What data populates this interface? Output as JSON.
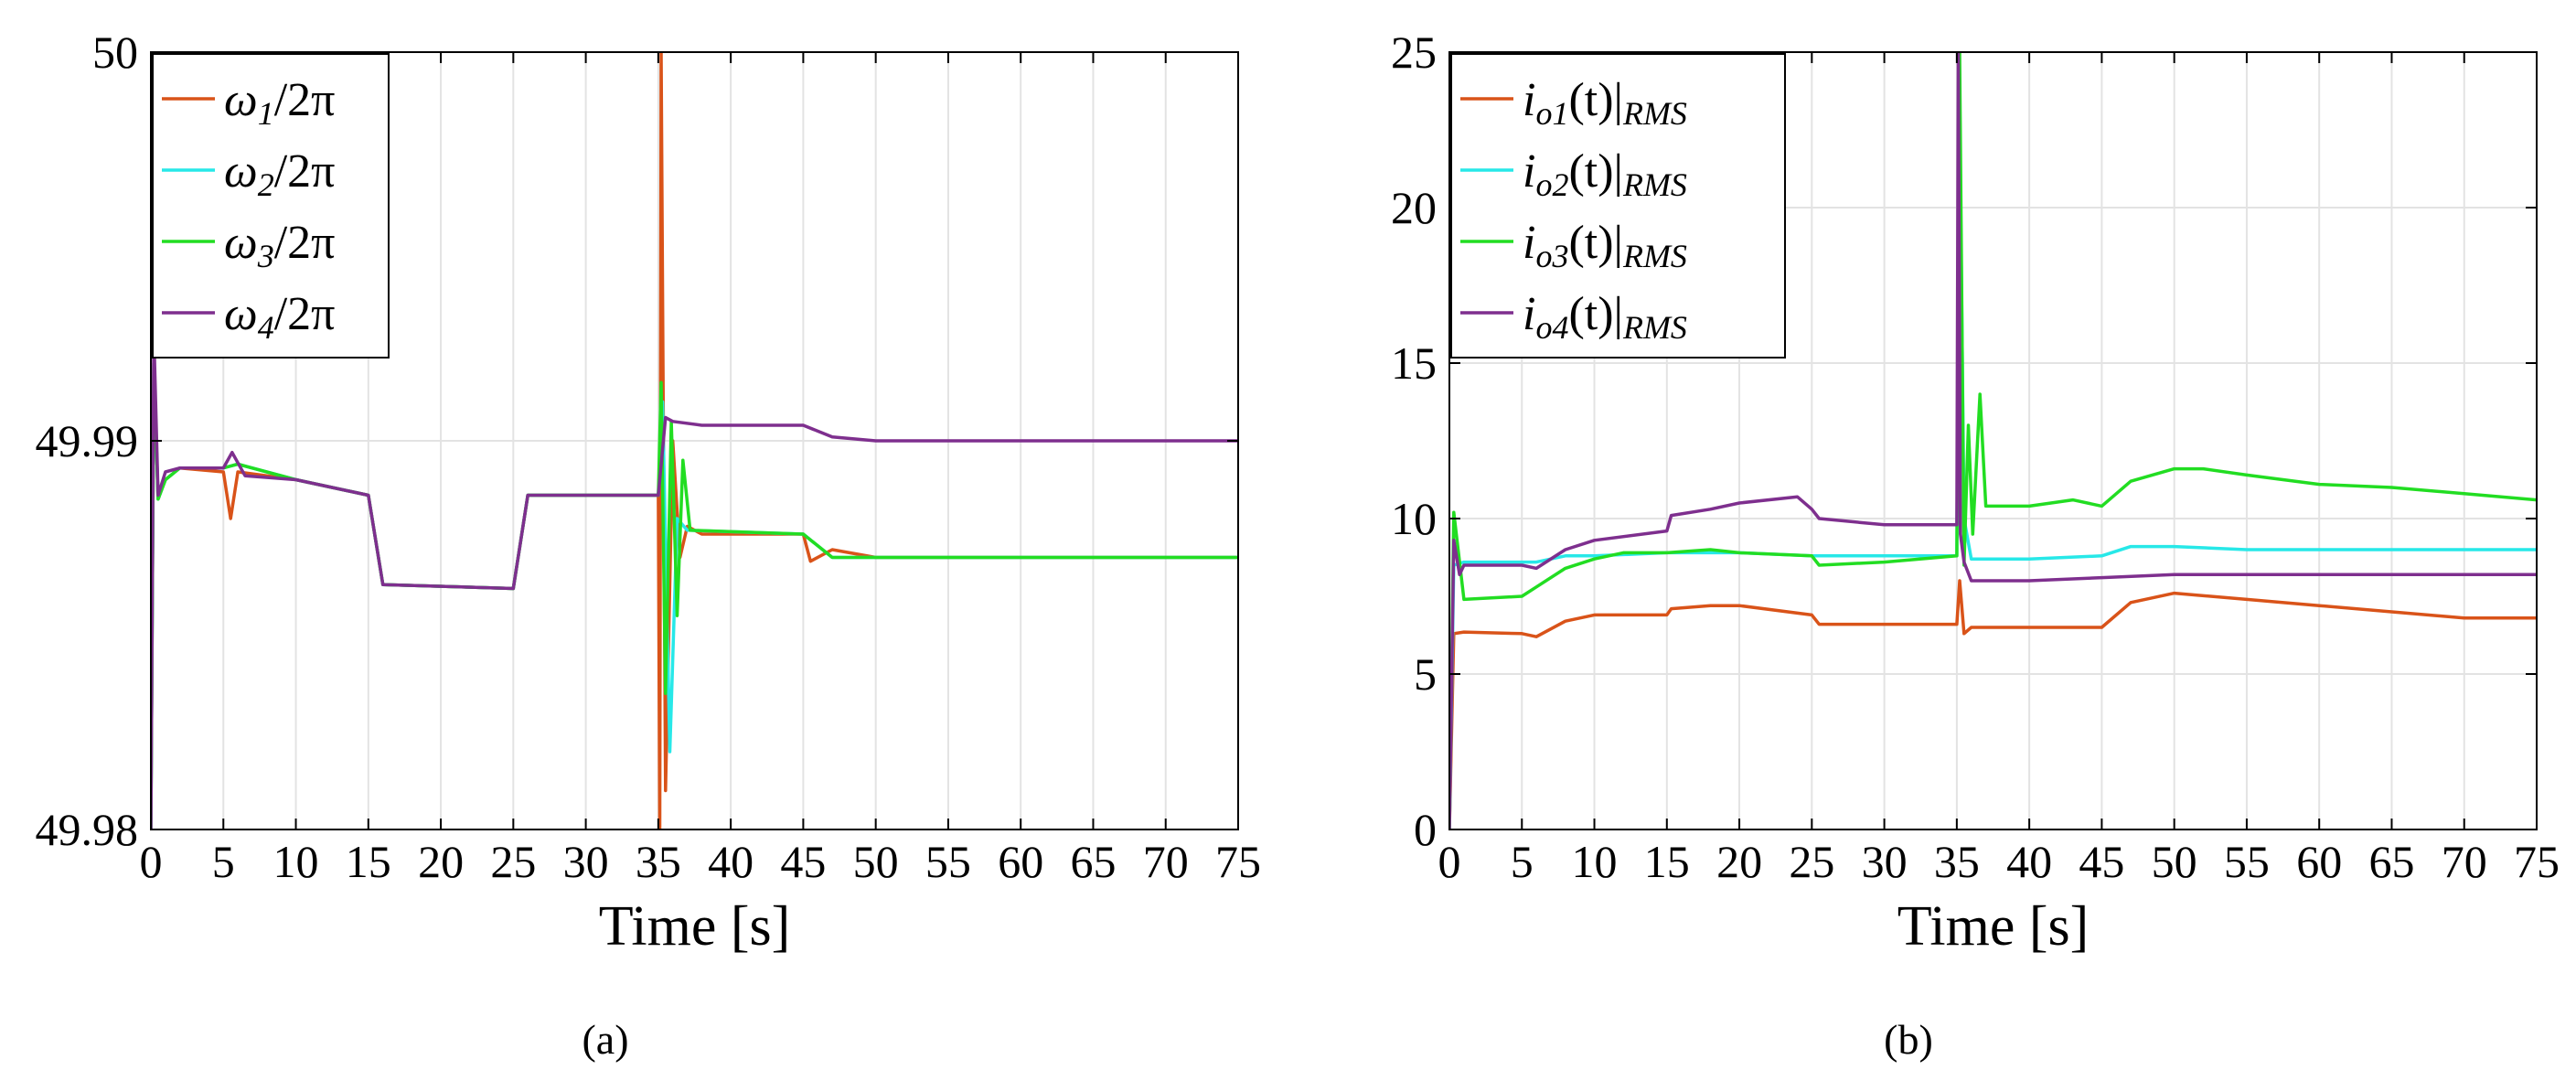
{
  "chart_data": [
    {
      "type": "line",
      "panel": "a",
      "caption_letter": "a",
      "caption": "(a)",
      "xlabel": "Time [s]",
      "ylabel": "",
      "xlim": [
        0,
        75
      ],
      "ylim": [
        49.98,
        50
      ],
      "xticks": [
        "0",
        "5",
        "10",
        "15",
        "20",
        "25",
        "30",
        "35",
        "40",
        "45",
        "50",
        "55",
        "60",
        "65",
        "70",
        "75"
      ],
      "yticks": [
        "49.98",
        "49.99",
        "50"
      ],
      "grid": true,
      "legend_position": "top-left",
      "series": [
        {
          "name": "ω1/2π",
          "base": "ω",
          "sub": "1",
          "suffix": "/2π",
          "color": "#D95319",
          "x": [
            0,
            0.1,
            0.2,
            0.5,
            1,
            2,
            5,
            5.5,
            6,
            10,
            15,
            16,
            25,
            26,
            35,
            35.1,
            35.2,
            35.5,
            36,
            36.5,
            37,
            38,
            45,
            45.5,
            47,
            50,
            75
          ],
          "y": [
            49.98,
            49.986,
            49.992,
            49.9885,
            49.989,
            49.9893,
            49.9892,
            49.988,
            49.9892,
            49.989,
            49.9886,
            49.9863,
            49.9862,
            49.9886,
            49.9886,
            49.98,
            50,
            49.981,
            49.99,
            49.987,
            49.9878,
            49.9876,
            49.9876,
            49.9869,
            49.9872,
            49.987,
            49.987
          ]
        },
        {
          "name": "ω2/2π",
          "base": "ω",
          "sub": "2",
          "suffix": "/2π",
          "color": "#27E8E8",
          "x": [
            0,
            0.2,
            0.5,
            1,
            2,
            5,
            6,
            10,
            15,
            16,
            25,
            26,
            35,
            35.3,
            35.8,
            36.3,
            37,
            45,
            47,
            50,
            75
          ],
          "y": [
            49.98,
            49.992,
            49.9885,
            49.989,
            49.9893,
            49.9893,
            49.9894,
            49.989,
            49.9886,
            49.9863,
            49.9862,
            49.9886,
            49.9886,
            49.991,
            49.982,
            49.988,
            49.9877,
            49.9876,
            49.987,
            49.987,
            49.987
          ]
        },
        {
          "name": "ω3/2π",
          "base": "ω",
          "sub": "3",
          "suffix": "/2π",
          "color": "#22DD22",
          "x": [
            0,
            0.2,
            0.5,
            1,
            2,
            5,
            6,
            10,
            15,
            16,
            25,
            26,
            35,
            35.2,
            35.5,
            35.9,
            36.3,
            36.7,
            37.2,
            45,
            47,
            50,
            75
          ],
          "y": [
            49.98,
            49.992,
            49.9885,
            49.989,
            49.9893,
            49.9893,
            49.9894,
            49.989,
            49.9886,
            49.9863,
            49.9862,
            49.9886,
            49.9886,
            49.9915,
            49.9835,
            49.9905,
            49.9855,
            49.9895,
            49.9877,
            49.9876,
            49.987,
            49.987,
            49.987
          ]
        },
        {
          "name": "ω4/2π",
          "base": "ω",
          "sub": "4",
          "suffix": "/2π",
          "color": "#7E2F8E",
          "x": [
            0,
            0.2,
            0.5,
            1,
            2,
            5,
            5.6,
            6.5,
            10,
            15,
            16,
            25,
            26,
            35,
            35.5,
            36,
            38,
            45,
            47,
            50,
            75
          ],
          "y": [
            49.98,
            49.9928,
            49.9886,
            49.9892,
            49.9893,
            49.9893,
            49.9897,
            49.9891,
            49.989,
            49.9886,
            49.9863,
            49.9862,
            49.9886,
            49.9886,
            49.9906,
            49.9905,
            49.9904,
            49.9904,
            49.9901,
            49.99,
            49.99
          ]
        }
      ]
    },
    {
      "type": "line",
      "panel": "b",
      "caption_letter": "b",
      "caption": "(b)",
      "xlabel": "Time [s]",
      "ylabel": "",
      "xlim": [
        0,
        75
      ],
      "ylim": [
        0,
        25
      ],
      "xticks": [
        "0",
        "5",
        "10",
        "15",
        "20",
        "25",
        "30",
        "35",
        "40",
        "45",
        "50",
        "55",
        "60",
        "65",
        "70",
        "75"
      ],
      "yticks": [
        "0",
        "5",
        "10",
        "15",
        "20",
        "25"
      ],
      "grid": true,
      "legend_position": "top-left",
      "series": [
        {
          "name": "io1(t)|RMS",
          "base": "i",
          "sub": "o1",
          "suffix": "(t)|",
          "sub2": "RMS",
          "color": "#D95319",
          "x": [
            0,
            0.3,
            1,
            5,
            6,
            8,
            10,
            15,
            15.3,
            18,
            20,
            25,
            25.5,
            30,
            35,
            35.2,
            35.5,
            36,
            40,
            45,
            47,
            50,
            55,
            60,
            65,
            70,
            75
          ],
          "y": [
            0,
            6.3,
            6.35,
            6.3,
            6.2,
            6.7,
            6.9,
            6.9,
            7.1,
            7.2,
            7.2,
            6.9,
            6.6,
            6.6,
            6.6,
            8.0,
            6.3,
            6.5,
            6.5,
            6.5,
            7.3,
            7.6,
            7.4,
            7.2,
            7.0,
            6.8,
            6.8
          ]
        },
        {
          "name": "io2(t)|RMS",
          "base": "i",
          "sub": "o2",
          "suffix": "(t)|",
          "sub2": "RMS",
          "color": "#27E8E8",
          "x": [
            0,
            0.3,
            1,
            5,
            6,
            8,
            10,
            15,
            18,
            20,
            25,
            30,
            35,
            35.2,
            35.5,
            36,
            40,
            45,
            47,
            50,
            55,
            60,
            65,
            70,
            75
          ],
          "y": [
            0,
            8.5,
            8.6,
            8.6,
            8.6,
            8.8,
            8.8,
            8.9,
            8.9,
            8.9,
            8.8,
            8.8,
            8.8,
            23,
            10,
            8.7,
            8.7,
            8.8,
            9.1,
            9.1,
            9.0,
            9.0,
            9.0,
            9.0,
            9.0
          ]
        },
        {
          "name": "io3(t)|RMS",
          "base": "i",
          "sub": "o3",
          "suffix": "(t)|",
          "sub2": "RMS",
          "color": "#22DD22",
          "x": [
            0,
            0.3,
            1,
            5,
            6,
            8,
            10,
            12,
            15,
            18,
            20,
            25,
            25.5,
            30,
            35,
            35.2,
            35.5,
            35.8,
            36.1,
            36.6,
            37,
            40,
            43,
            45,
            47,
            50,
            52,
            55,
            60,
            65,
            70,
            75
          ],
          "y": [
            0,
            10.2,
            7.4,
            7.5,
            7.8,
            8.4,
            8.7,
            8.9,
            8.9,
            9.0,
            8.9,
            8.8,
            8.5,
            8.6,
            8.8,
            25,
            8.5,
            13,
            9.5,
            14,
            10.4,
            10.4,
            10.6,
            10.4,
            11.2,
            11.6,
            11.6,
            11.4,
            11.1,
            11.0,
            10.8,
            10.6
          ]
        },
        {
          "name": "io4(t)|RMS",
          "base": "i",
          "sub": "o4",
          "suffix": "(t)|",
          "sub2": "RMS",
          "color": "#7E2F8E",
          "x": [
            0,
            0.3,
            0.7,
            1,
            5,
            6,
            8,
            10,
            15,
            15.3,
            18,
            20,
            24,
            25,
            25.5,
            30,
            35,
            35.1,
            35.25,
            35.5,
            36,
            40,
            45,
            50,
            55,
            60,
            65,
            70,
            75
          ],
          "y": [
            0,
            9.3,
            8.2,
            8.5,
            8.5,
            8.4,
            9.0,
            9.3,
            9.6,
            10.1,
            10.3,
            10.5,
            10.7,
            10.3,
            10.0,
            9.8,
            9.8,
            25,
            9.5,
            8.6,
            8.0,
            8.0,
            8.1,
            8.2,
            8.2,
            8.2,
            8.2,
            8.2,
            8.2
          ]
        }
      ]
    }
  ]
}
